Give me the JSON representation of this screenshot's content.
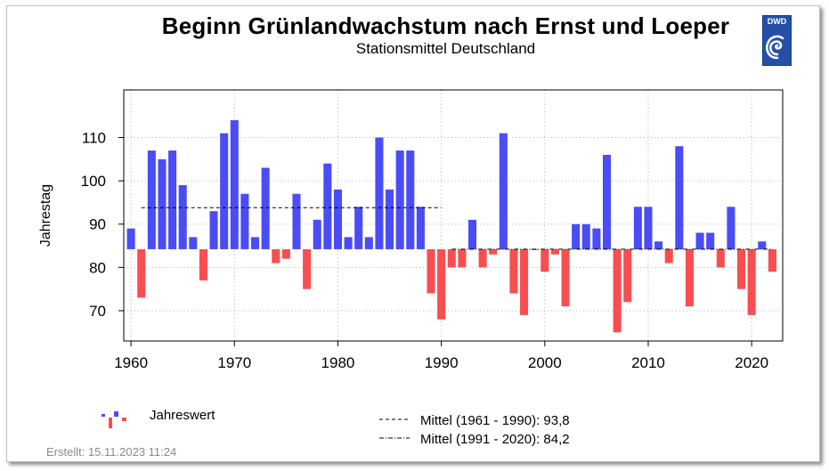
{
  "header": {
    "title": "Beginn Grünlandwachstum nach Ernst und Loeper",
    "subtitle": "Stationsmittel Deutschland",
    "logo_text": "DWD"
  },
  "footer": {
    "created": "Erstellt:  15.11.2023 11:24"
  },
  "legend": {
    "series_label": "Jahreswert",
    "mean1_label": "Mittel (1961 - 1990): 93,8",
    "mean2_label": "Mittel (1991 - 2020): 84,2"
  },
  "colors": {
    "above": "#4a4cf5",
    "below": "#f74e51",
    "grid": "#b5b5b5",
    "logo": "#2450a7"
  },
  "chart_data": {
    "type": "bar",
    "title": "Beginn Grünlandwachstum nach Ernst und Loeper",
    "subtitle": "Stationsmittel Deutschland",
    "ylabel": "Jahrestag",
    "xlim": [
      1959.3,
      2023
    ],
    "ylim": [
      63,
      121
    ],
    "xticks": [
      1960,
      1970,
      1980,
      1990,
      2000,
      2010,
      2020
    ],
    "yticks": [
      70,
      80,
      90,
      100,
      110
    ],
    "baseline": 84.2,
    "grid": true,
    "x": [
      1960,
      1961,
      1962,
      1963,
      1964,
      1965,
      1966,
      1967,
      1968,
      1969,
      1970,
      1971,
      1972,
      1973,
      1974,
      1975,
      1976,
      1977,
      1978,
      1979,
      1980,
      1981,
      1982,
      1983,
      1984,
      1985,
      1986,
      1987,
      1988,
      1989,
      1990,
      1991,
      1992,
      1993,
      1994,
      1995,
      1996,
      1997,
      1998,
      1999,
      2000,
      2001,
      2002,
      2003,
      2004,
      2005,
      2006,
      2007,
      2008,
      2009,
      2010,
      2011,
      2012,
      2013,
      2014,
      2015,
      2016,
      2017,
      2018,
      2019,
      2020,
      2021,
      2022
    ],
    "values": [
      89,
      73,
      107,
      105,
      107,
      99,
      87,
      77,
      93,
      111,
      114,
      97,
      87,
      103,
      81,
      82,
      97,
      75,
      91,
      104,
      98,
      87,
      94,
      87,
      110,
      98,
      107,
      107,
      94,
      74,
      68,
      80,
      80,
      91,
      80,
      83,
      111,
      74,
      69,
      84,
      79,
      83,
      71,
      90,
      90,
      89,
      106,
      65,
      72,
      94,
      94,
      86,
      81,
      108,
      71,
      88,
      88,
      80,
      94,
      75,
      69,
      86,
      79
    ],
    "reference_lines": [
      {
        "label": "Mittel (1961 - 1990): 93,8",
        "value": 93.8,
        "x_range": [
          1961,
          1990
        ],
        "style": "dashed"
      },
      {
        "label": "Mittel (1991 - 2020): 84,2",
        "value": 84.2,
        "x_range": [
          1991,
          2022
        ],
        "style": "dash-dot"
      }
    ]
  }
}
